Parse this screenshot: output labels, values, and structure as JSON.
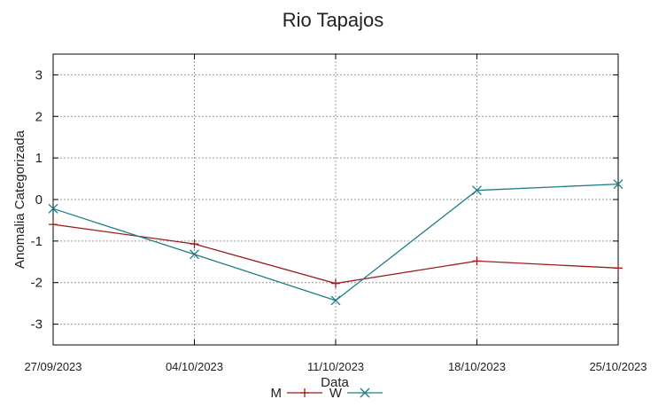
{
  "chart_data": {
    "type": "line",
    "title": "Rio Tapajos",
    "xlabel": "Data",
    "ylabel": "Anomalia Categorizada",
    "categories": [
      "27/09/2023",
      "04/10/2023",
      "11/10/2023",
      "18/10/2023",
      "25/10/2023"
    ],
    "yticks": [
      "-3",
      "-2",
      "-1",
      "0",
      "1",
      "2",
      "3"
    ],
    "ylim": [
      -3.5,
      3.5
    ],
    "grid": true,
    "legend_position": "bottom-center",
    "series": [
      {
        "name": "M",
        "values": [
          -0.6,
          -1.07,
          -2.02,
          -1.48,
          -1.65
        ],
        "color": "#a01b1b",
        "marker": "plus"
      },
      {
        "name": "W",
        "values": [
          -0.22,
          -1.32,
          -2.43,
          0.22,
          0.37
        ],
        "color": "#1e7d86",
        "marker": "x"
      }
    ]
  }
}
